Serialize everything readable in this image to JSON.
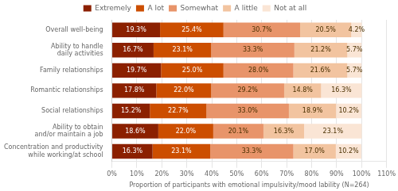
{
  "chart_data": {
    "type": "bar",
    "orientation": "horizontal",
    "stacked": true,
    "data_labels": true,
    "categories": [
      "Overall well-being",
      "Ability to handle\ndaily activities",
      "Family relationships",
      "Romantic relationships",
      "Social relationships",
      "Ability to obtain\nand/or maintain a job",
      "Concentration and productivity\nwhile working/at school"
    ],
    "series": [
      {
        "name": "Extremely",
        "color": "#8B2000",
        "values": [
          19.3,
          16.7,
          19.7,
          17.8,
          15.2,
          18.6,
          16.3
        ],
        "value_labels": [
          "19.3%",
          "16.7%",
          "19.7%",
          "17.8%",
          "15.2%",
          "18.6%",
          "16.3%"
        ]
      },
      {
        "name": "A lot",
        "color": "#CC4E00",
        "values": [
          25.4,
          23.1,
          25.0,
          22.0,
          22.7,
          22.0,
          23.1
        ],
        "value_labels": [
          "25.4%",
          "23.1%",
          "25.0%",
          "22.0%",
          "22.7%",
          "22.0%",
          "23.1%"
        ]
      },
      {
        "name": "Somewhat",
        "color": "#E8946A",
        "values": [
          30.7,
          33.3,
          28.0,
          29.2,
          33.0,
          20.1,
          33.3
        ],
        "value_labels": [
          "30.7%",
          "33.3%",
          "28.0%",
          "29.2%",
          "33.0%",
          "20.1%",
          "33.3%"
        ]
      },
      {
        "name": "A little",
        "color": "#F2C4A0",
        "values": [
          20.5,
          21.2,
          21.6,
          14.8,
          18.9,
          16.3,
          17.0
        ],
        "value_labels": [
          "20.5%",
          "21.2%",
          "21.6%",
          "14.8%",
          "18.9%",
          "16.3%",
          "17.0%"
        ]
      },
      {
        "name": "Not at all",
        "color": "#FAE5D5",
        "values": [
          4.2,
          5.7,
          5.7,
          16.3,
          10.2,
          23.1,
          10.2
        ],
        "value_labels": [
          "4.2%",
          "5.7%",
          "5.7%",
          "16.3%",
          "10.2%",
          "23.1%",
          "10.2%"
        ]
      }
    ],
    "xlabel": "Proportion of participants with emotional impulsivity/mood lability (N=264)",
    "xlim": [
      0,
      110
    ],
    "xticks": [
      {
        "value": 0,
        "label": "0%"
      },
      {
        "value": 10,
        "label": "10%"
      },
      {
        "value": 20,
        "label": "20%"
      },
      {
        "value": 30,
        "label": "30%"
      },
      {
        "value": 40,
        "label": "40%"
      },
      {
        "value": 50,
        "label": "50%"
      },
      {
        "value": 60,
        "label": "60%"
      },
      {
        "value": 70,
        "label": "70%"
      },
      {
        "value": 80,
        "label": "80%"
      },
      {
        "value": 90,
        "label": "90%"
      },
      {
        "value": 100,
        "label": "100%"
      },
      {
        "value": 110,
        "label": "110%"
      }
    ],
    "grid": true,
    "legend": "top"
  }
}
